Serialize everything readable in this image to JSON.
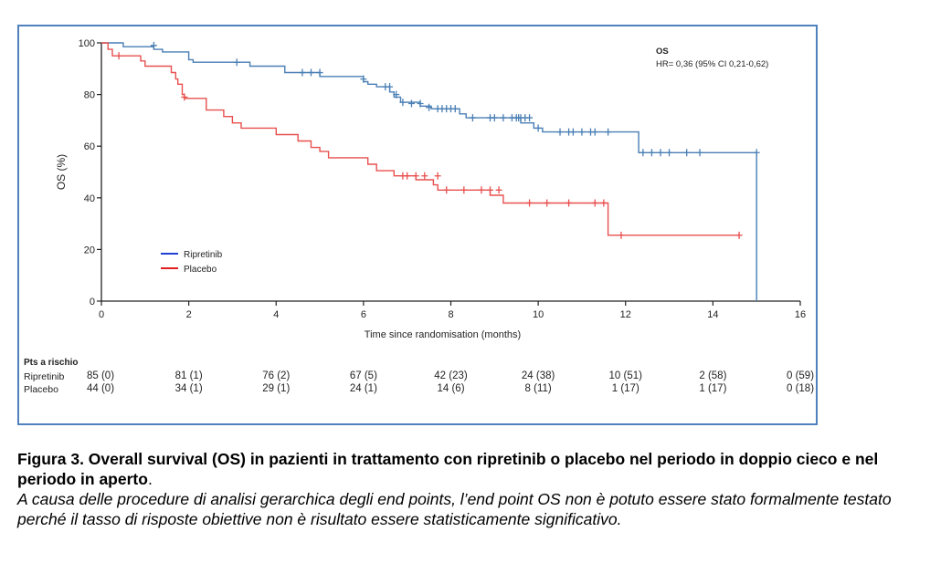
{
  "chart_data": {
    "type": "line",
    "subtype": "kaplan-meier",
    "xlabel": "Time since randomisation (months)",
    "ylabel": "OS (%)",
    "xlim": [
      0,
      16
    ],
    "ylim": [
      0,
      100
    ],
    "xticks": [
      0,
      2,
      4,
      6,
      8,
      10,
      12,
      14,
      16
    ],
    "yticks": [
      0,
      20,
      40,
      60,
      80,
      100
    ],
    "annotation_title": "OS",
    "annotation_text": "HR= 0,36 (95% CI 0,21-0,62)",
    "legend_position": "lower-left",
    "series": [
      {
        "name": "Ripretinib",
        "color": "#4a7fb5",
        "legend_color": "#1f3fd6",
        "steps": [
          [
            0,
            100
          ],
          [
            0.5,
            100
          ],
          [
            0.5,
            98.5
          ],
          [
            1.2,
            98.5
          ],
          [
            1.2,
            97.5
          ],
          [
            1.4,
            97.5
          ],
          [
            1.4,
            96.5
          ],
          [
            2.0,
            96.5
          ],
          [
            2.0,
            93.5
          ],
          [
            2.1,
            93.5
          ],
          [
            2.1,
            92.5
          ],
          [
            3.4,
            92.5
          ],
          [
            3.4,
            91
          ],
          [
            4.2,
            91
          ],
          [
            4.2,
            88.5
          ],
          [
            5.0,
            88.5
          ],
          [
            5.0,
            87
          ],
          [
            6.0,
            87
          ],
          [
            6.0,
            85
          ],
          [
            6.1,
            85
          ],
          [
            6.1,
            84
          ],
          [
            6.3,
            84
          ],
          [
            6.3,
            83
          ],
          [
            6.6,
            83
          ],
          [
            6.6,
            81
          ],
          [
            6.7,
            81
          ],
          [
            6.7,
            79
          ],
          [
            6.85,
            79
          ],
          [
            6.85,
            77
          ],
          [
            7.3,
            77
          ],
          [
            7.3,
            75.5
          ],
          [
            7.55,
            75.5
          ],
          [
            7.55,
            74.5
          ],
          [
            8.2,
            74.5
          ],
          [
            8.2,
            72.5
          ],
          [
            8.35,
            72.5
          ],
          [
            8.35,
            71
          ],
          [
            9.6,
            71
          ],
          [
            9.6,
            69
          ],
          [
            9.9,
            69
          ],
          [
            9.9,
            67
          ],
          [
            10.1,
            67
          ],
          [
            10.1,
            65.5
          ],
          [
            12.3,
            65.5
          ],
          [
            12.3,
            57.5
          ],
          [
            15.0,
            57.5
          ],
          [
            15.0,
            0
          ]
        ],
        "censors": [
          [
            1.2,
            99
          ],
          [
            3.1,
            92.5
          ],
          [
            4.6,
            88.5
          ],
          [
            4.8,
            88.5
          ],
          [
            5.0,
            88.5
          ],
          [
            6.0,
            86
          ],
          [
            6.5,
            83
          ],
          [
            6.6,
            83
          ],
          [
            6.75,
            80
          ],
          [
            6.9,
            77
          ],
          [
            7.1,
            76.5
          ],
          [
            7.3,
            76.5
          ],
          [
            7.5,
            75
          ],
          [
            7.7,
            74.5
          ],
          [
            7.8,
            74.5
          ],
          [
            7.9,
            74.5
          ],
          [
            8.0,
            74.5
          ],
          [
            8.1,
            74.5
          ],
          [
            8.5,
            71
          ],
          [
            8.9,
            71
          ],
          [
            9.0,
            71
          ],
          [
            9.2,
            71
          ],
          [
            9.4,
            71
          ],
          [
            9.5,
            71
          ],
          [
            9.55,
            71
          ],
          [
            9.6,
            71
          ],
          [
            9.7,
            71
          ],
          [
            9.8,
            71
          ],
          [
            10.0,
            67
          ],
          [
            10.5,
            65.5
          ],
          [
            10.7,
            65.5
          ],
          [
            10.8,
            65.5
          ],
          [
            11.0,
            65.5
          ],
          [
            11.2,
            65.5
          ],
          [
            11.3,
            65.5
          ],
          [
            11.6,
            65.5
          ],
          [
            12.4,
            57.5
          ],
          [
            12.6,
            57.5
          ],
          [
            12.8,
            57.5
          ],
          [
            13.0,
            57.5
          ],
          [
            13.4,
            57.5
          ],
          [
            13.7,
            57.5
          ],
          [
            15.0,
            57.5
          ]
        ]
      },
      {
        "name": "Placebo",
        "color": "#e8504f",
        "legend_color": "#e02020",
        "steps": [
          [
            0,
            100
          ],
          [
            0.15,
            100
          ],
          [
            0.15,
            97.5
          ],
          [
            0.25,
            97.5
          ],
          [
            0.25,
            95
          ],
          [
            0.9,
            95
          ],
          [
            0.9,
            93
          ],
          [
            1.0,
            93
          ],
          [
            1.0,
            91
          ],
          [
            1.6,
            91
          ],
          [
            1.6,
            88.5
          ],
          [
            1.7,
            88.5
          ],
          [
            1.7,
            86
          ],
          [
            1.75,
            86
          ],
          [
            1.75,
            84
          ],
          [
            1.85,
            84
          ],
          [
            1.85,
            80
          ],
          [
            1.9,
            80
          ],
          [
            1.9,
            78.5
          ],
          [
            2.4,
            78.5
          ],
          [
            2.4,
            74
          ],
          [
            2.8,
            74
          ],
          [
            2.8,
            71.5
          ],
          [
            3.0,
            71.5
          ],
          [
            3.0,
            69
          ],
          [
            3.2,
            69
          ],
          [
            3.2,
            67
          ],
          [
            4.0,
            67
          ],
          [
            4.0,
            64.5
          ],
          [
            4.5,
            64.5
          ],
          [
            4.5,
            62
          ],
          [
            4.8,
            62
          ],
          [
            4.8,
            59.5
          ],
          [
            5.0,
            59.5
          ],
          [
            5.0,
            58
          ],
          [
            5.2,
            58
          ],
          [
            5.2,
            55.5
          ],
          [
            6.1,
            55.5
          ],
          [
            6.1,
            53
          ],
          [
            6.3,
            53
          ],
          [
            6.3,
            50.5
          ],
          [
            6.7,
            50.5
          ],
          [
            6.7,
            48.5
          ],
          [
            7.2,
            48.5
          ],
          [
            7.2,
            47
          ],
          [
            7.6,
            47
          ],
          [
            7.6,
            45
          ],
          [
            7.7,
            45
          ],
          [
            7.7,
            43
          ],
          [
            8.9,
            43
          ],
          [
            8.9,
            41
          ],
          [
            9.2,
            41
          ],
          [
            9.2,
            38
          ],
          [
            11.6,
            38
          ],
          [
            11.6,
            25.5
          ],
          [
            14.6,
            25.5
          ]
        ],
        "censors": [
          [
            0.4,
            95
          ],
          [
            1.9,
            79
          ],
          [
            6.9,
            48.5
          ],
          [
            7.0,
            48.5
          ],
          [
            7.2,
            48.5
          ],
          [
            7.4,
            48.5
          ],
          [
            7.7,
            48.5
          ],
          [
            7.9,
            43
          ],
          [
            8.3,
            43
          ],
          [
            8.7,
            43
          ],
          [
            8.9,
            43
          ],
          [
            9.1,
            43
          ],
          [
            9.8,
            38
          ],
          [
            10.2,
            38
          ],
          [
            10.7,
            38
          ],
          [
            11.3,
            38
          ],
          [
            11.5,
            38
          ],
          [
            11.9,
            25.5
          ],
          [
            14.6,
            25.5
          ]
        ]
      }
    ]
  },
  "risk_table": {
    "title": "Pts a rischio",
    "columns_x": [
      0,
      2,
      4,
      6,
      8,
      10,
      12,
      14,
      16
    ],
    "rows": [
      {
        "label": "Ripretinib",
        "values": [
          "85 (0)",
          "81 (1)",
          "76 (2)",
          "67 (5)",
          "42 (23)",
          "24 (38)",
          "10 (51)",
          "2 (58)",
          "0 (59)"
        ]
      },
      {
        "label": "Placebo",
        "values": [
          "44 (0)",
          "34 (1)",
          "29 (1)",
          "24 (1)",
          "14 (6)",
          "8 (11)",
          "1 (17)",
          "1 (17)",
          "0 (18)"
        ]
      }
    ]
  },
  "caption": {
    "bold": "Figura 3. Overall survival (OS) in pazienti in trattamento con ripretinib o placebo nel periodo in doppio cieco e nel periodo in aperto",
    "after_bold": ".",
    "italic": "A causa delle procedure di analisi gerarchica degli end points, l’end point OS non è potuto essere stato formalmente testato perché il tasso di risposte obiettive non è risultato essere statisticamente significativo."
  }
}
